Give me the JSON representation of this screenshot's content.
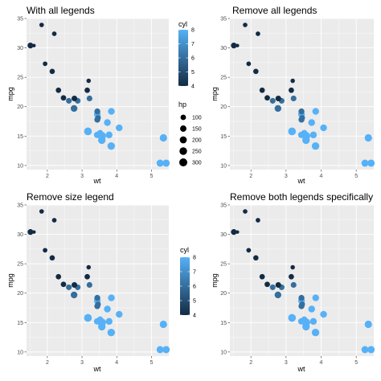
{
  "colors": {
    "panel_bg": "#EBEBEB",
    "grid_major": "#FFFFFF",
    "cyl_low": "#132B43",
    "cyl_high": "#56B1F7",
    "size_key": "#000000"
  },
  "chart_data": [
    {
      "type": "scatter",
      "title": "With all legends",
      "xlabel": "wt",
      "ylabel": "mpg",
      "show_color_legend": true,
      "show_size_legend": true,
      "legend_position": "right",
      "grid": true
    },
    {
      "type": "scatter",
      "title": "Remove all legends",
      "xlabel": "wt",
      "ylabel": "mpg",
      "show_color_legend": false,
      "show_size_legend": false,
      "legend_position": "none",
      "grid": true
    },
    {
      "type": "scatter",
      "title": "Remove size legend",
      "xlabel": "wt",
      "ylabel": "mpg",
      "show_color_legend": true,
      "show_size_legend": false,
      "legend_position": "right",
      "grid": true
    },
    {
      "type": "scatter",
      "title": "Remove both legends specifically",
      "xlabel": "wt",
      "ylabel": "mpg",
      "show_color_legend": false,
      "show_size_legend": false,
      "legend_position": "none",
      "grid": true
    }
  ],
  "shared_data": {
    "xlim": [
      1.4,
      5.5
    ],
    "ylim": [
      9.3,
      35.0
    ],
    "x_ticks": [
      2,
      3,
      4,
      5
    ],
    "y_ticks": [
      10,
      15,
      20,
      25,
      30,
      35
    ],
    "color_legend": {
      "title": "cyl",
      "labels": [
        4,
        5,
        6,
        7,
        8
      ],
      "range": [
        4,
        8
      ]
    },
    "size_legend": {
      "title": "hp",
      "labels": [
        100,
        150,
        200,
        250,
        300
      ],
      "range": [
        52,
        335
      ]
    },
    "points": [
      {
        "wt": 2.62,
        "mpg": 21.0,
        "cyl": 6,
        "hp": 110
      },
      {
        "wt": 2.875,
        "mpg": 21.0,
        "cyl": 6,
        "hp": 110
      },
      {
        "wt": 2.32,
        "mpg": 22.8,
        "cyl": 4,
        "hp": 93
      },
      {
        "wt": 3.215,
        "mpg": 21.4,
        "cyl": 6,
        "hp": 110
      },
      {
        "wt": 3.44,
        "mpg": 18.7,
        "cyl": 8,
        "hp": 175
      },
      {
        "wt": 3.46,
        "mpg": 18.1,
        "cyl": 6,
        "hp": 105
      },
      {
        "wt": 3.57,
        "mpg": 14.3,
        "cyl": 8,
        "hp": 245
      },
      {
        "wt": 3.19,
        "mpg": 24.4,
        "cyl": 4,
        "hp": 62
      },
      {
        "wt": 3.15,
        "mpg": 22.8,
        "cyl": 4,
        "hp": 95
      },
      {
        "wt": 3.44,
        "mpg": 19.2,
        "cyl": 6,
        "hp": 123
      },
      {
        "wt": 3.44,
        "mpg": 17.8,
        "cyl": 6,
        "hp": 123
      },
      {
        "wt": 4.07,
        "mpg": 16.4,
        "cyl": 8,
        "hp": 180
      },
      {
        "wt": 3.73,
        "mpg": 17.3,
        "cyl": 8,
        "hp": 180
      },
      {
        "wt": 3.78,
        "mpg": 15.2,
        "cyl": 8,
        "hp": 180
      },
      {
        "wt": 5.25,
        "mpg": 10.4,
        "cyl": 8,
        "hp": 205
      },
      {
        "wt": 5.424,
        "mpg": 10.4,
        "cyl": 8,
        "hp": 215
      },
      {
        "wt": 5.345,
        "mpg": 14.7,
        "cyl": 8,
        "hp": 230
      },
      {
        "wt": 2.2,
        "mpg": 32.4,
        "cyl": 4,
        "hp": 66
      },
      {
        "wt": 1.615,
        "mpg": 30.4,
        "cyl": 4,
        "hp": 52
      },
      {
        "wt": 1.835,
        "mpg": 33.9,
        "cyl": 4,
        "hp": 65
      },
      {
        "wt": 2.465,
        "mpg": 21.5,
        "cyl": 4,
        "hp": 97
      },
      {
        "wt": 3.52,
        "mpg": 15.5,
        "cyl": 8,
        "hp": 150
      },
      {
        "wt": 3.435,
        "mpg": 15.2,
        "cyl": 8,
        "hp": 150
      },
      {
        "wt": 3.84,
        "mpg": 13.3,
        "cyl": 8,
        "hp": 245
      },
      {
        "wt": 3.845,
        "mpg": 19.2,
        "cyl": 8,
        "hp": 175
      },
      {
        "wt": 1.935,
        "mpg": 27.3,
        "cyl": 4,
        "hp": 66
      },
      {
        "wt": 2.14,
        "mpg": 26.0,
        "cyl": 4,
        "hp": 91
      },
      {
        "wt": 1.513,
        "mpg": 30.4,
        "cyl": 4,
        "hp": 113
      },
      {
        "wt": 3.17,
        "mpg": 15.8,
        "cyl": 8,
        "hp": 264
      },
      {
        "wt": 2.77,
        "mpg": 19.7,
        "cyl": 6,
        "hp": 175
      },
      {
        "wt": 3.57,
        "mpg": 15.0,
        "cyl": 8,
        "hp": 335
      },
      {
        "wt": 2.78,
        "mpg": 21.4,
        "cyl": 4,
        "hp": 109
      }
    ]
  }
}
